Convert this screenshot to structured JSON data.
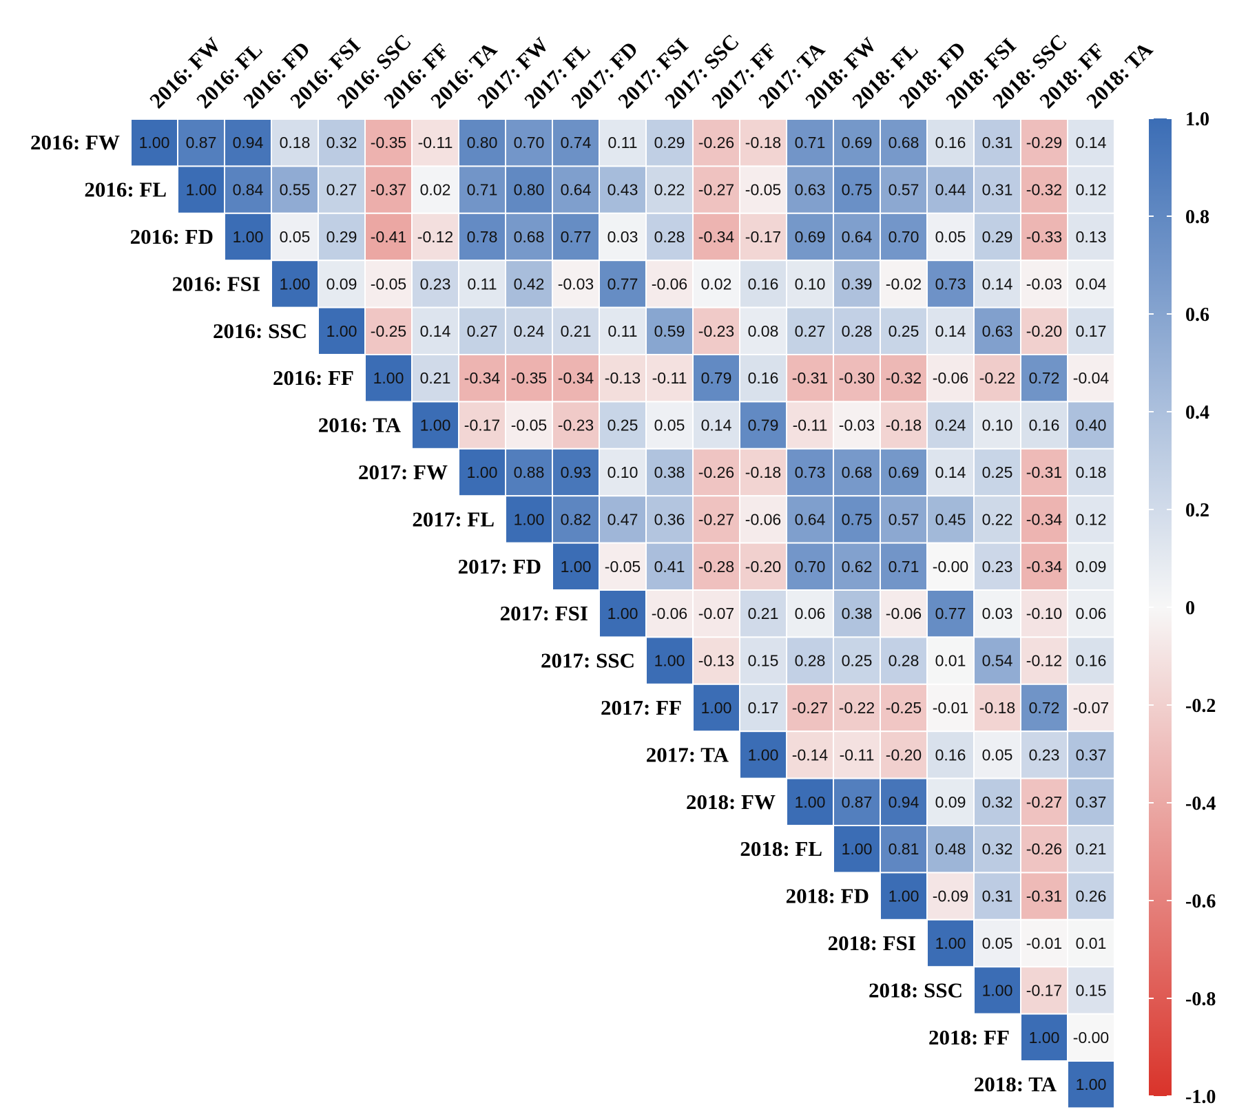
{
  "chart_data": {
    "type": "heatmap",
    "labels": [
      "2016: FW",
      "2016: FL",
      "2016: FD",
      "2016: FSI",
      "2016: SSC",
      "2016: FF",
      "2016: TA",
      "2017: FW",
      "2017: FL",
      "2017: FD",
      "2017: FSI",
      "2017: SSC",
      "2017: FF",
      "2017: TA",
      "2018: FW",
      "2018: FL",
      "2018: FD",
      "2018: FSI",
      "2018: SSC",
      "2018: FF",
      "2018: TA"
    ],
    "upper_triangle_rows": [
      [
        "1.00",
        "0.87",
        "0.94",
        "0.18",
        "0.32",
        "-0.35",
        "-0.11",
        "0.80",
        "0.70",
        "0.74",
        "0.11",
        "0.29",
        "-0.26",
        "-0.18",
        "0.71",
        "0.69",
        "0.68",
        "0.16",
        "0.31",
        "-0.29",
        "0.14"
      ],
      [
        "1.00",
        "0.84",
        "0.55",
        "0.27",
        "-0.37",
        "0.02",
        "0.71",
        "0.80",
        "0.64",
        "0.43",
        "0.22",
        "-0.27",
        "-0.05",
        "0.63",
        "0.75",
        "0.57",
        "0.44",
        "0.31",
        "-0.32",
        "0.12"
      ],
      [
        "1.00",
        "0.05",
        "0.29",
        "-0.41",
        "-0.12",
        "0.78",
        "0.68",
        "0.77",
        "0.03",
        "0.28",
        "-0.34",
        "-0.17",
        "0.69",
        "0.64",
        "0.70",
        "0.05",
        "0.29",
        "-0.33",
        "0.13"
      ],
      [
        "1.00",
        "0.09",
        "-0.05",
        "0.23",
        "0.11",
        "0.42",
        "-0.03",
        "0.77",
        "-0.06",
        "0.02",
        "0.16",
        "0.10",
        "0.39",
        "-0.02",
        "0.73",
        "0.14",
        "-0.03",
        "0.04"
      ],
      [
        "1.00",
        "-0.25",
        "0.14",
        "0.27",
        "0.24",
        "0.21",
        "0.11",
        "0.59",
        "-0.23",
        "0.08",
        "0.27",
        "0.28",
        "0.25",
        "0.14",
        "0.63",
        "-0.20",
        "0.17"
      ],
      [
        "1.00",
        "0.21",
        "-0.34",
        "-0.35",
        "-0.34",
        "-0.13",
        "-0.11",
        "0.79",
        "0.16",
        "-0.31",
        "-0.30",
        "-0.32",
        "-0.06",
        "-0.22",
        "0.72",
        "-0.04"
      ],
      [
        "1.00",
        "-0.17",
        "-0.05",
        "-0.23",
        "0.25",
        "0.05",
        "0.14",
        "0.79",
        "-0.11",
        "-0.03",
        "-0.18",
        "0.24",
        "0.10",
        "0.16",
        "0.40"
      ],
      [
        "1.00",
        "0.88",
        "0.93",
        "0.10",
        "0.38",
        "-0.26",
        "-0.18",
        "0.73",
        "0.68",
        "0.69",
        "0.14",
        "0.25",
        "-0.31",
        "0.18"
      ],
      [
        "1.00",
        "0.82",
        "0.47",
        "0.36",
        "-0.27",
        "-0.06",
        "0.64",
        "0.75",
        "0.57",
        "0.45",
        "0.22",
        "-0.34",
        "0.12"
      ],
      [
        "1.00",
        "-0.05",
        "0.41",
        "-0.28",
        "-0.20",
        "0.70",
        "0.62",
        "0.71",
        "-0.00",
        "0.23",
        "-0.34",
        "0.09"
      ],
      [
        "1.00",
        "-0.06",
        "-0.07",
        "0.21",
        "0.06",
        "0.38",
        "-0.06",
        "0.77",
        "0.03",
        "-0.10",
        "0.06"
      ],
      [
        "1.00",
        "-0.13",
        "0.15",
        "0.28",
        "0.25",
        "0.28",
        "0.01",
        "0.54",
        "-0.12",
        "0.16"
      ],
      [
        "1.00",
        "0.17",
        "-0.27",
        "-0.22",
        "-0.25",
        "-0.01",
        "-0.18",
        "0.72",
        "-0.07"
      ],
      [
        "1.00",
        "-0.14",
        "-0.11",
        "-0.20",
        "0.16",
        "0.05",
        "0.23",
        "0.37"
      ],
      [
        "1.00",
        "0.87",
        "0.94",
        "0.09",
        "0.32",
        "-0.27",
        "0.37"
      ],
      [
        "1.00",
        "0.81",
        "0.48",
        "0.32",
        "-0.26",
        "0.21"
      ],
      [
        "1.00",
        "-0.09",
        "0.31",
        "-0.31",
        "0.26"
      ],
      [
        "1.00",
        "0.05",
        "-0.01",
        "0.01"
      ],
      [
        "1.00",
        "-0.17",
        "0.15"
      ],
      [
        "1.00",
        "-0.00"
      ],
      [
        "1.00"
      ]
    ],
    "colorbar": {
      "range": [
        -1.0,
        1.0
      ],
      "ticks": [
        "1.0",
        "0.8",
        "0.6",
        "0.4",
        "0.2",
        "0",
        "-0.2",
        "-0.4",
        "-0.6",
        "-0.8",
        "-1.0"
      ],
      "colors": {
        "high": "#3b6db5",
        "mid": "#f7f7f7",
        "low": "#d9332a"
      }
    },
    "grid": true,
    "legend": "right"
  }
}
